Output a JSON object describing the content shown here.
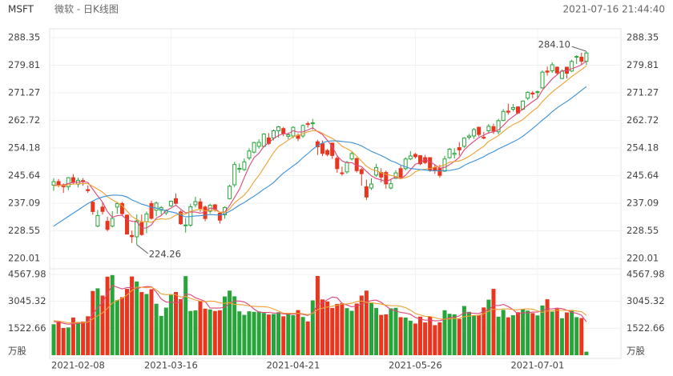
{
  "chart_data": {
    "type": "candlestick",
    "symbol": "MSFT",
    "title": "微软 - 日K线图",
    "timestamp": "2021-07-16 21:44:40",
    "categories": [
      "2021-02-08",
      null,
      null,
      null,
      null,
      null,
      null,
      null,
      null,
      null,
      null,
      null,
      null,
      null,
      null,
      null,
      null,
      null,
      null,
      null,
      null,
      null,
      null,
      null,
      "2021-03-16",
      null,
      null,
      null,
      null,
      null,
      null,
      null,
      null,
      null,
      null,
      null,
      null,
      null,
      null,
      null,
      null,
      null,
      null,
      null,
      null,
      null,
      null,
      null,
      null,
      "2021-04-21",
      null,
      null,
      null,
      null,
      null,
      null,
      null,
      null,
      null,
      null,
      null,
      null,
      null,
      null,
      null,
      null,
      null,
      null,
      null,
      null,
      null,
      null,
      null,
      null,
      "2021-05-26",
      null,
      null,
      null,
      null,
      null,
      null,
      null,
      null,
      null,
      null,
      null,
      null,
      null,
      null,
      null,
      null,
      null,
      null,
      null,
      null,
      null,
      null,
      null,
      null,
      "2021-07-01",
      null,
      null,
      null,
      null,
      null,
      null,
      null,
      null,
      null,
      null
    ],
    "open": [
      242.7,
      243.8,
      242.8,
      242.2,
      245.0,
      243.0,
      244.1,
      241.3,
      237.4,
      230.0,
      235.9,
      231.5,
      230.0,
      235.9,
      237.0,
      233.4,
      227.1,
      226.7,
      231.1,
      231.4,
      237.0,
      234.9,
      234.9,
      234.1,
      236.3,
      238.5,
      234.4,
      230.3,
      230.3,
      236.6,
      237.5,
      235.9,
      234.6,
      236.6,
      234.0,
      233.5,
      238.5,
      242.8,
      247.6,
      247.5,
      251.1,
      252.9,
      254.7,
      254.7,
      257.3,
      257.3,
      259.5,
      260.2,
      257.8,
      257.9,
      258.1,
      257.9,
      261.7,
      261.7,
      256.1,
      255.5,
      253.4,
      255.7,
      251.0,
      246.5,
      246.8,
      250.8,
      250.9,
      247.5,
      242.2,
      241.8,
      245.8,
      246.6,
      246.6,
      241.8,
      244.8,
      247.8,
      247.8,
      250.8,
      252.2,
      251.8,
      251.2,
      251.2,
      248.1,
      247.8,
      247.0,
      251.2,
      252.2,
      254.3,
      254.7,
      257.5,
      257.9,
      260.6,
      257.5,
      259.5,
      260.8,
      259.2,
      262.7,
      265.6,
      266.2,
      266.9,
      266.2,
      269.6,
      271.2,
      271.6,
      272.8,
      278.0,
      278.1,
      279.2,
      275.7,
      279.2,
      278.0,
      282.4,
      282.3,
      281.0
    ],
    "high": [
      244.8,
      244.6,
      243.2,
      245.1,
      246.1,
      245.0,
      244.9,
      242.6,
      237.9,
      235.0,
      237.3,
      232.9,
      234.6,
      237.5,
      237.5,
      233.6,
      228.6,
      233.6,
      233.6,
      234.5,
      237.9,
      237.6,
      236.2,
      235.2,
      237.9,
      240.1,
      234.9,
      232.5,
      236.9,
      239.1,
      238.6,
      236.4,
      236.9,
      236.8,
      234.0,
      236.1,
      242.8,
      249.9,
      249.4,
      250.9,
      254.1,
      256.1,
      256.9,
      258.8,
      258.8,
      259.9,
      261.0,
      260.7,
      259.0,
      260.9,
      258.7,
      261.5,
      262.4,
      263.2,
      256.7,
      256.5,
      253.9,
      255.7,
      251.6,
      248.4,
      250.2,
      253.0,
      251.3,
      248.0,
      244.4,
      244.8,
      249.3,
      247.9,
      247.2,
      244.6,
      247.3,
      248.7,
      251.3,
      253.2,
      252.7,
      252.0,
      252.0,
      251.3,
      249.0,
      249.0,
      251.8,
      254.2,
      254.1,
      256.0,
      257.5,
      258.5,
      260.4,
      260.8,
      259.2,
      261.6,
      261.7,
      263.2,
      266.2,
      267.9,
      267.8,
      267.1,
      268.9,
      271.7,
      271.8,
      272.0,
      278.2,
      279.4,
      280.7,
      279.4,
      278.5,
      279.2,
      281.5,
      282.9,
      283.7,
      284.1
    ],
    "low": [
      240.9,
      242.0,
      240.3,
      241.1,
      243.0,
      242.0,
      242.5,
      240.3,
      233.5,
      229.7,
      233.6,
      228.4,
      229.6,
      233.8,
      233.2,
      227.4,
      224.8,
      224.26,
      227.0,
      227.8,
      232.0,
      233.0,
      233.6,
      233.4,
      235.9,
      236.7,
      230.4,
      228.0,
      229.8,
      235.8,
      234.4,
      231.5,
      233.9,
      234.5,
      230.8,
      232.3,
      238.3,
      242.1,
      246.5,
      247.1,
      250.4,
      252.5,
      254.0,
      254.4,
      255.1,
      256.5,
      257.4,
      257.8,
      256.9,
      257.2,
      256.3,
      257.3,
      260.5,
      259.8,
      252.0,
      251.7,
      251.6,
      250.8,
      246.5,
      245.6,
      246.2,
      250.3,
      246.6,
      242.5,
      238.1,
      241.2,
      245.2,
      243.5,
      241.6,
      241.4,
      244.6,
      244.6,
      247.3,
      250.4,
      250.9,
      248.9,
      249.2,
      246.8,
      246.2,
      245.0,
      246.8,
      250.8,
      250.9,
      251.8,
      254.2,
      256.8,
      257.0,
      257.7,
      256.9,
      258.6,
      258.5,
      258.4,
      262.5,
      264.5,
      265.5,
      264.7,
      265.9,
      269.0,
      269.6,
      269.6,
      272.5,
      276.6,
      277.4,
      276.7,
      275.5,
      275.7,
      277.7,
      280.2,
      279.9,
      279.9
    ],
    "close": [
      243.77,
      242.82,
      242.2,
      244.99,
      243.7,
      244.2,
      243.79,
      240.97,
      234.51,
      233.27,
      234.55,
      228.99,
      232.38,
      236.94,
      233.87,
      227.56,
      226.73,
      231.6,
      227.39,
      233.78,
      232.42,
      237.13,
      235.75,
      234.81,
      237.71,
      237.04,
      230.72,
      230.35,
      235.99,
      237.58,
      235.46,
      232.34,
      236.48,
      235.24,
      231.85,
      235.77,
      242.35,
      249.07,
      247.86,
      249.9,
      253.25,
      255.85,
      255.91,
      258.49,
      255.59,
      259.5,
      260.74,
      258.74,
      258.26,
      260.58,
      257.17,
      261.15,
      261.55,
      261.97,
      254.56,
      252.51,
      252.18,
      251.86,
      247.79,
      246.47,
      249.73,
      252.46,
      247.18,
      246.23,
      239.0,
      243.03,
      248.15,
      245.18,
      243.08,
      243.12,
      246.48,
      245.17,
      250.78,
      251.72,
      251.49,
      249.31,
      249.68,
      247.4,
      247.3,
      245.71,
      250.79,
      253.81,
      252.57,
      253.59,
      257.24,
      257.89,
      259.89,
      258.36,
      257.38,
      260.9,
      259.43,
      262.63,
      265.51,
      265.27,
      266.69,
      265.02,
      268.72,
      271.4,
      270.9,
      271.6,
      277.65,
      277.66,
      279.93,
      277.42,
      277.94,
      277.32,
      280.98,
      282.51,
      281.03,
      283.6
    ],
    "up_color": "#27a53a",
    "down_color": "#e8361f",
    "ma_lines": [
      {
        "color": "#e0457b",
        "values": [
          242.6,
          242.7,
          242.7,
          243.2,
          243.5,
          243.58,
          243.78,
          243.53,
          241.43,
          239.35,
          237.42,
          234.46,
          232.74,
          233.23,
          233.35,
          231.95,
          231.5,
          231.34,
          229.43,
          229.41,
          230.38,
          232.46,
          233.29,
          234.78,
          235.56,
          236.49,
          235.21,
          234.13,
          234.36,
          234.34,
          234.02,
          234.34,
          235.57,
          235.42,
          234.27,
          234.34,
          236.34,
          238.86,
          241.38,
          244.99,
          248.49,
          251.19,
          252.55,
          254.68,
          255.82,
          257.07,
          258.05,
          258.61,
          258.57,
          259.56,
          259.1,
          259.18,
          259.74,
          260.48,
          259.28,
          258.35,
          256.55,
          254.62,
          251.78,
          250.16,
          249.61,
          249.66,
          248.73,
          248.41,
          246.92,
          245.58,
          244.72,
          244.32,
          243.69,
          244.51,
          245.2,
          244.61,
          245.73,
          247.45,
          249.13,
          249.69,
          250.6,
          249.92,
          249.04,
          247.88,
          248.18,
          249.0,
          250.04,
          251.29,
          253.6,
          255.02,
          256.24,
          257.39,
          258.15,
          258.88,
          259.19,
          259.74,
          261.17,
          262.75,
          263.91,
          265.02,
          266.24,
          267.42,
          268.55,
          269.53,
          272.05,
          273.84,
          275.55,
          276.85,
          278.12,
          278.05,
          278.72,
          279.23,
          279.96,
          281.09
        ]
      },
      {
        "color": "#f0a030",
        "values": [
          242.5,
          242.6,
          242.6,
          242.8,
          243.0,
          243.09,
          243.24,
          243.12,
          242.32,
          241.43,
          240.5,
          239.12,
          238.14,
          237.33,
          236.35,
          234.69,
          232.98,
          232.04,
          231.33,
          231.38,
          231.17,
          231.98,
          232.32,
          232.11,
          232.49,
          233.44,
          233.84,
          233.71,
          234.57,
          234.95,
          235.26,
          234.78,
          234.85,
          234.89,
          234.31,
          234.18,
          235.34,
          237.22,
          238.4,
          239.63,
          241.42,
          243.77,
          245.71,
          248.03,
          250.41,
          252.78,
          254.62,
          255.58,
          256.63,
          257.69,
          258.09,
          258.62,
          259.18,
          259.53,
          259.42,
          258.73,
          257.87,
          257.18,
          256.13,
          254.72,
          253.98,
          253.11,
          251.68,
          250.1,
          248.54,
          247.6,
          247.19,
          246.53,
          246.05,
          245.72,
          245.39,
          244.67,
          245.03,
          245.57,
          246.82,
          247.45,
          247.61,
          247.83,
          248.25,
          248.51,
          248.94,
          249.8,
          249.98,
          250.17,
          250.74,
          251.6,
          252.62,
          253.72,
          254.72,
          256.24,
          257.11,
          257.99,
          259.28,
          260.45,
          261.4,
          262.11,
          262.99,
          264.3,
          265.65,
          266.72,
          268.54,
          270.04,
          271.49,
          272.7,
          273.83,
          275.05,
          276.28,
          277.39,
          278.41,
          279.61
        ]
      },
      {
        "color": "#3a8fd8",
        "values": [
          230.0,
          231.0,
          232.0,
          233.0,
          234.0,
          235.0,
          236.0,
          237.0,
          237.8,
          238.5,
          239.0,
          239.4,
          239.6,
          239.6,
          239.5,
          239.0,
          238.1,
          237.5,
          236.8,
          236.4,
          235.84,
          235.55,
          235.23,
          234.72,
          234.42,
          234.07,
          233.41,
          232.88,
          232.95,
          233.17,
          233.22,
          233.38,
          233.59,
          233.5,
          233.4,
          233.81,
          234.59,
          235.47,
          236.49,
          237.29,
          238.34,
          239.28,
          240.28,
          241.46,
          242.36,
          243.48,
          244.98,
          246.4,
          247.52,
          248.66,
          249.76,
          251.2,
          252.45,
          253.78,
          254.92,
          255.76,
          256.25,
          256.38,
          256.38,
          256.21,
          256.04,
          255.87,
          255.43,
          254.82,
          253.98,
          253.17,
          252.53,
          251.86,
          251.09,
          250.22,
          249.69,
          248.89,
          248.36,
          247.84,
          247.68,
          247.53,
          247.4,
          247.18,
          247.15,
          247.12,
          247.17,
          247.24,
          247.51,
          247.87,
          248.78,
          249.53,
          250.12,
          250.78,
          251.49,
          252.38,
          253.03,
          253.9,
          254.63,
          255.31,
          256.07,
          256.86,
          257.81,
          259.01,
          260.19,
          261.48,
          262.83,
          264.02,
          265.39,
          266.58,
          267.62,
          268.58,
          269.64,
          270.85,
          272.03,
          273.17
        ]
      }
    ],
    "ylim": [
      220.01,
      288.35
    ],
    "yticks": [
      220.01,
      228.55,
      237.09,
      245.64,
      254.18,
      262.72,
      271.27,
      279.81,
      288.35
    ],
    "grid": true,
    "annotations": [
      {
        "label": "284.10",
        "value": 284.1
      },
      {
        "label": "224.26",
        "value": 224.26
      }
    ],
    "volume": [
      1750,
      1900,
      1540,
      1570,
      2130,
      1880,
      1900,
      2200,
      3630,
      3780,
      3370,
      4440,
      4530,
      3110,
      3280,
      3750,
      4450,
      4170,
      3570,
      3460,
      3730,
      2910,
      2220,
      2690,
      3410,
      3570,
      3170,
      4470,
      2500,
      2530,
      3070,
      2630,
      2590,
      2500,
      2540,
      3320,
      3650,
      3330,
      2480,
      2280,
      2480,
      2450,
      2470,
      2390,
      2300,
      2330,
      2430,
      2200,
      2360,
      2260,
      2550,
      2160,
      1910,
      3100,
      4480,
      3150,
      3040,
      2670,
      2900,
      2940,
      2660,
      2510,
      2920,
      3370,
      3650,
      2980,
      2670,
      2280,
      2310,
      2650,
      2680,
      2150,
      2130,
      1950,
      1790,
      2180,
      1850,
      2190,
      1700,
      1860,
      2540,
      2340,
      2310,
      2050,
      2780,
      2450,
      2250,
      2260,
      2700,
      3140,
      3750,
      2180,
      2560,
      2140,
      2260,
      2430,
      2610,
      2520,
      2380,
      2250,
      2810,
      3160,
      2460,
      2630,
      2090,
      2420,
      2550,
      2150,
      2100,
      200
    ],
    "vol_ma_lines": [
      {
        "color": "#e0457b",
        "values": [
          1900,
          1880,
          1800,
          1750,
          1778,
          1804,
          1804,
          1936,
          2348,
          2678,
          2976,
          3484,
          3950,
          3846,
          3746,
          3822,
          3824,
          3752,
          3844,
          3880,
          3876,
          3568,
          3178,
          3002,
          2992,
          2960,
          3012,
          3462,
          3424,
          3248,
          3148,
          3040,
          2664,
          2664,
          2666,
          2716,
          2920,
          3068,
          3064,
          3012,
          2844,
          2604,
          2432,
          2414,
          2418,
          2388,
          2384,
          2330,
          2324,
          2316,
          2360,
          2306,
          2248,
          2396,
          2840,
          2960,
          3136,
          3288,
          3248,
          2940,
          2842,
          2736,
          2786,
          2880,
          3022,
          3086,
          3118,
          2990,
          2778,
          2578,
          2518,
          2414,
          2384,
          2312,
          2140,
          2040,
          1980,
          1992,
          1942,
          1956,
          2028,
          2126,
          2150,
          2220,
          2404,
          2386,
          2368,
          2358,
          2488,
          2560,
          2820,
          2806,
          2866,
          2754,
          2578,
          2314,
          2400,
          2392,
          2440,
          2438,
          2514,
          2624,
          2612,
          2662,
          2630,
          2552,
          2430,
          2368,
          2262,
          1884
        ]
      },
      {
        "color": "#f0a030",
        "values": [
          1950,
          1930,
          1880,
          1830,
          1820,
          1852,
          1842,
          1868,
          2049,
          2228,
          2390,
          2644,
          2943,
          3097,
          3212,
          3399,
          3654,
          3851,
          3845,
          3813,
          3849,
          3696,
          3465,
          3423,
          3436,
          3418,
          3290,
          3320,
          3213,
          3120,
          3054,
          3026,
          3063,
          3044,
          2957,
          2932,
          2980,
          2866,
          2864,
          2839,
          2780,
          2762,
          2750,
          2739,
          2715,
          2616,
          2494,
          2381,
          2369,
          2367,
          2374,
          2345,
          2289,
          2360,
          2578,
          2660,
          2721,
          2768,
          2822,
          2890,
          2901,
          2936,
          3037,
          3064,
          2981,
          2964,
          2927,
          2888,
          2829,
          2800,
          2802,
          2766,
          2687,
          2545,
          2359,
          2279,
          2197,
          2188,
          2127,
          2048,
          2034,
          2053,
          2071,
          2081,
          2180,
          2207,
          2247,
          2254,
          2354,
          2482,
          2603,
          2587,
          2612,
          2621,
          2569,
          2567,
          2603,
          2629,
          2597,
          2508,
          2414,
          2512,
          2502,
          2551,
          2534,
          2533,
          2527,
          2490,
          2462,
          2257
        ]
      }
    ],
    "vol_lim": [
      0,
      4567.98
    ],
    "vol_ticks": [
      1522.66,
      3045.32,
      4567.98
    ],
    "vol_unit": "万股"
  }
}
